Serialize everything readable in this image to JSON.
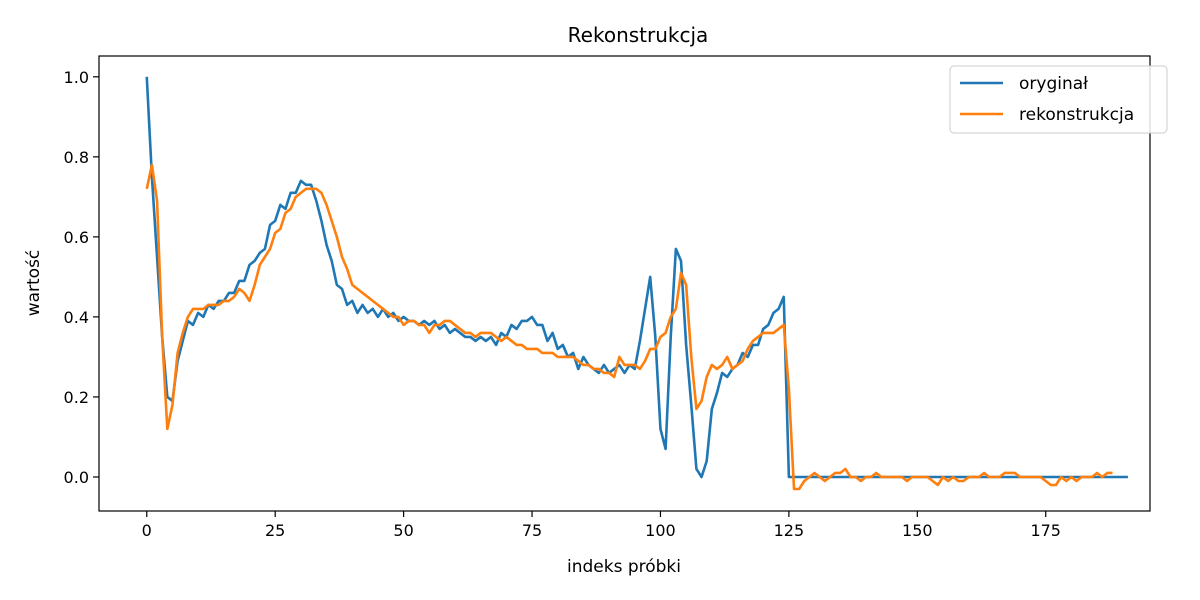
{
  "chart_data": {
    "type": "line",
    "title": "Rekonstrukcja",
    "xlabel": "indeks próbki",
    "ylabel": "wartość",
    "xlim": [
      -9.3,
      195.3
    ],
    "ylim": [
      -0.085,
      1.052
    ],
    "xticks": [
      0,
      25,
      50,
      75,
      100,
      125,
      150,
      175
    ],
    "yticks": [
      0.0,
      0.2,
      0.4,
      0.6,
      0.8,
      1.0
    ],
    "xtick_labels": [
      "0",
      "25",
      "50",
      "75",
      "100",
      "125",
      "150",
      "175"
    ],
    "ytick_labels": [
      "0.0",
      "0.2",
      "0.4",
      "0.6",
      "0.8",
      "1.0"
    ],
    "grid": false,
    "legend_position": "top-right",
    "colors": {
      "oryginal": "#1f77b4",
      "rekonstrukcja": "#ff7f0e"
    },
    "series": [
      {
        "name": "oryginał",
        "values": [
          1.0,
          0.75,
          0.55,
          0.35,
          0.2,
          0.19,
          0.29,
          0.34,
          0.39,
          0.38,
          0.41,
          0.4,
          0.43,
          0.42,
          0.44,
          0.44,
          0.46,
          0.46,
          0.49,
          0.49,
          0.53,
          0.54,
          0.56,
          0.57,
          0.63,
          0.64,
          0.68,
          0.67,
          0.71,
          0.71,
          0.74,
          0.73,
          0.73,
          0.69,
          0.64,
          0.58,
          0.54,
          0.48,
          0.47,
          0.43,
          0.44,
          0.41,
          0.43,
          0.41,
          0.42,
          0.4,
          0.42,
          0.4,
          0.41,
          0.39,
          0.4,
          0.39,
          0.39,
          0.38,
          0.39,
          0.38,
          0.39,
          0.37,
          0.38,
          0.36,
          0.37,
          0.36,
          0.35,
          0.35,
          0.34,
          0.35,
          0.34,
          0.35,
          0.33,
          0.36,
          0.35,
          0.38,
          0.37,
          0.39,
          0.39,
          0.4,
          0.38,
          0.38,
          0.34,
          0.36,
          0.32,
          0.33,
          0.3,
          0.31,
          0.27,
          0.3,
          0.28,
          0.27,
          0.26,
          0.28,
          0.26,
          0.27,
          0.28,
          0.26,
          0.28,
          0.27,
          0.34,
          0.42,
          0.5,
          0.35,
          0.12,
          0.07,
          0.35,
          0.57,
          0.54,
          0.33,
          0.18,
          0.02,
          0.0,
          0.04,
          0.17,
          0.21,
          0.26,
          0.25,
          0.27,
          0.28,
          0.31,
          0.3,
          0.33,
          0.33,
          0.37,
          0.38,
          0.41,
          0.42,
          0.45,
          0.0,
          0.0,
          0.0,
          0.0,
          0.0,
          0.0,
          0.0,
          0.0,
          0.0,
          0.0,
          0.0,
          0.0,
          0.0,
          0.0,
          0.0,
          0.0,
          0.0,
          0.0,
          0.0,
          0.0,
          0.0,
          0.0,
          0.0,
          0.0,
          0.0,
          0.0,
          0.0,
          0.0,
          0.0,
          0.0,
          0.0,
          0.0,
          0.0,
          0.0,
          0.0,
          0.0,
          0.0,
          0.0,
          0.0,
          0.0,
          0.0,
          0.0,
          0.0,
          0.0,
          0.0,
          0.0,
          0.0,
          0.0,
          0.0,
          0.0,
          0.0,
          0.0,
          0.0,
          0.0,
          0.0,
          0.0,
          0.0,
          0.0,
          0.0,
          0.0,
          0.0,
          0.0,
          0.0,
          0.0,
          0.0,
          0.0,
          0.0
        ]
      },
      {
        "name": "rekonstrukcja",
        "values": [
          0.72,
          0.78,
          0.69,
          0.35,
          0.12,
          0.18,
          0.31,
          0.36,
          0.4,
          0.42,
          0.42,
          0.42,
          0.43,
          0.43,
          0.43,
          0.44,
          0.44,
          0.45,
          0.47,
          0.46,
          0.44,
          0.48,
          0.53,
          0.55,
          0.57,
          0.61,
          0.62,
          0.66,
          0.67,
          0.7,
          0.71,
          0.72,
          0.72,
          0.72,
          0.71,
          0.68,
          0.64,
          0.6,
          0.55,
          0.52,
          0.48,
          0.47,
          0.46,
          0.45,
          0.44,
          0.43,
          0.42,
          0.41,
          0.4,
          0.4,
          0.38,
          0.39,
          0.39,
          0.38,
          0.38,
          0.36,
          0.38,
          0.38,
          0.39,
          0.39,
          0.38,
          0.37,
          0.36,
          0.36,
          0.35,
          0.36,
          0.36,
          0.36,
          0.35,
          0.34,
          0.35,
          0.34,
          0.33,
          0.33,
          0.32,
          0.32,
          0.32,
          0.31,
          0.31,
          0.31,
          0.3,
          0.3,
          0.3,
          0.3,
          0.29,
          0.28,
          0.28,
          0.27,
          0.27,
          0.26,
          0.26,
          0.25,
          0.3,
          0.28,
          0.28,
          0.28,
          0.27,
          0.29,
          0.32,
          0.32,
          0.35,
          0.36,
          0.4,
          0.42,
          0.51,
          0.48,
          0.3,
          0.17,
          0.19,
          0.25,
          0.28,
          0.27,
          0.28,
          0.3,
          0.27,
          0.28,
          0.29,
          0.32,
          0.34,
          0.35,
          0.36,
          0.36,
          0.36,
          0.37,
          0.38,
          0.22,
          -0.03,
          -0.03,
          -0.01,
          0.0,
          0.01,
          0.0,
          -0.01,
          0.0,
          0.01,
          0.01,
          0.02,
          0.0,
          0.0,
          -0.01,
          0.0,
          0.0,
          0.01,
          0.0,
          0.0,
          0.0,
          0.0,
          0.0,
          -0.01,
          0.0,
          0.0,
          0.0,
          0.0,
          -0.01,
          -0.02,
          0.0,
          -0.01,
          0.0,
          -0.01,
          -0.01,
          0.0,
          0.0,
          0.0,
          0.01,
          0.0,
          0.0,
          0.0,
          0.01,
          0.01,
          0.01,
          0.0,
          0.0,
          0.0,
          0.0,
          0.0,
          -0.01,
          -0.02,
          -0.02,
          0.0,
          -0.01,
          0.0,
          -0.01,
          0.0,
          0.0,
          0.0,
          0.01,
          0.0,
          0.01,
          0.01
        ]
      }
    ]
  }
}
